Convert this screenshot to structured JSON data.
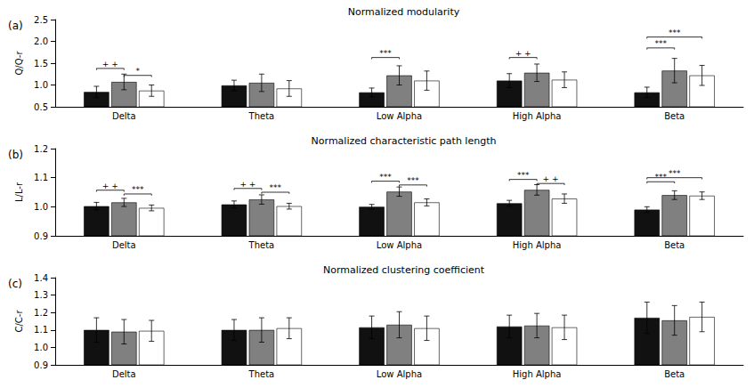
{
  "chart_data": [
    {
      "type": "bar",
      "panel_label": "(a)",
      "title": "Normalized modularity",
      "ylabel": "Q/Q-r",
      "categories": [
        "Delta",
        "Theta",
        "Low Alpha",
        "High Alpha",
        "Beta"
      ],
      "series": [
        {
          "color": "#111111",
          "values": [
            0.84,
            0.99,
            0.83,
            1.1,
            0.83
          ],
          "errors": [
            0.13,
            0.12,
            0.1,
            0.16,
            0.12
          ]
        },
        {
          "color": "#808080",
          "values": [
            1.07,
            1.05,
            1.22,
            1.28,
            1.33
          ],
          "errors": [
            0.18,
            0.2,
            0.22,
            0.2,
            0.28
          ]
        },
        {
          "color": "#ffffff",
          "values": [
            0.87,
            0.92,
            1.1,
            1.12,
            1.22
          ],
          "errors": [
            0.13,
            0.18,
            0.22,
            0.18,
            0.23
          ]
        }
      ],
      "ylim": [
        0.5,
        2.5
      ],
      "yticks": [
        0.5,
        {
          "value": 1,
          "label": "1.0"
        },
        1.5,
        {
          "value": 2,
          "label": "2.0"
        },
        2.5
      ],
      "grid": false,
      "brackets": [
        {
          "category": "Delta",
          "from": 0,
          "to": 1,
          "label": "+ +",
          "y": 1.38
        },
        {
          "category": "Delta",
          "from": 1,
          "to": 2,
          "label": "*",
          "y": 1.22
        },
        {
          "category": "Low Alpha",
          "from": 0,
          "to": 1,
          "label": "***",
          "y": 1.63
        },
        {
          "category": "High Alpha",
          "from": 0,
          "to": 1,
          "label": "+ +",
          "y": 1.63
        },
        {
          "category": "Beta",
          "from": 0,
          "to": 2,
          "label": "***",
          "y": 2.1
        },
        {
          "category": "Beta",
          "from": 0,
          "to": 1,
          "label": "***",
          "y": 1.85
        }
      ]
    },
    {
      "type": "bar",
      "panel_label": "(b)",
      "title": "Normalized characteristic path length",
      "ylabel": "L/L-r",
      "categories": [
        "Delta",
        "Theta",
        "Low Alpha",
        "High Alpha",
        "Beta"
      ],
      "series": [
        {
          "color": "#111111",
          "values": [
            1.002,
            1.008,
            1.0,
            1.012,
            0.99
          ],
          "errors": [
            0.013,
            0.012,
            0.008,
            0.01,
            0.01
          ]
        },
        {
          "color": "#808080",
          "values": [
            1.015,
            1.025,
            1.052,
            1.058,
            1.04
          ],
          "errors": [
            0.014,
            0.016,
            0.016,
            0.018,
            0.015
          ]
        },
        {
          "color": "#ffffff",
          "values": [
            0.996,
            1.002,
            1.015,
            1.028,
            1.038
          ],
          "errors": [
            0.01,
            0.01,
            0.012,
            0.016,
            0.013
          ]
        }
      ],
      "ylim": [
        0.9,
        1.2
      ],
      "yticks": [
        0.9,
        {
          "value": 1,
          "label": "1.0"
        },
        1.1,
        1.2
      ],
      "grid": false,
      "brackets": [
        {
          "category": "Delta",
          "from": 0,
          "to": 1,
          "label": "+ +",
          "y": 1.057
        },
        {
          "category": "Delta",
          "from": 1,
          "to": 2,
          "label": "***",
          "y": 1.044
        },
        {
          "category": "Theta",
          "from": 0,
          "to": 1,
          "label": "+ +",
          "y": 1.063
        },
        {
          "category": "Theta",
          "from": 1,
          "to": 2,
          "label": "***",
          "y": 1.05
        },
        {
          "category": "Low Alpha",
          "from": 0,
          "to": 1,
          "label": "***",
          "y": 1.088
        },
        {
          "category": "Low Alpha",
          "from": 1,
          "to": 2,
          "label": "***",
          "y": 1.075
        },
        {
          "category": "High Alpha",
          "from": 0,
          "to": 1,
          "label": "***",
          "y": 1.094
        },
        {
          "category": "High Alpha",
          "from": 1,
          "to": 2,
          "label": "+ +",
          "y": 1.08
        },
        {
          "category": "Beta",
          "from": 0,
          "to": 2,
          "label": "***",
          "y": 1.1
        },
        {
          "category": "Beta",
          "from": 0,
          "to": 1,
          "label": "***",
          "y": 1.086
        }
      ]
    },
    {
      "type": "bar",
      "panel_label": "(c)",
      "title": "Normalized clustering coefficient",
      "ylabel": "C/C-r",
      "categories": [
        "Delta",
        "Theta",
        "Low Alpha",
        "High Alpha",
        "Beta"
      ],
      "series": [
        {
          "color": "#111111",
          "values": [
            1.1,
            1.1,
            1.115,
            1.12,
            1.17
          ],
          "errors": [
            0.07,
            0.06,
            0.065,
            0.065,
            0.09
          ]
        },
        {
          "color": "#808080",
          "values": [
            1.09,
            1.1,
            1.13,
            1.125,
            1.155
          ],
          "errors": [
            0.07,
            0.07,
            0.075,
            0.07,
            0.085
          ]
        },
        {
          "color": "#ffffff",
          "values": [
            1.095,
            1.11,
            1.11,
            1.115,
            1.175
          ],
          "errors": [
            0.06,
            0.06,
            0.07,
            0.07,
            0.085
          ]
        }
      ],
      "ylim": [
        0.9,
        1.4
      ],
      "yticks": [
        0.9,
        {
          "value": 1,
          "label": "1.0"
        },
        1.1,
        1.2,
        1.3,
        1.4
      ],
      "grid": false
    }
  ]
}
